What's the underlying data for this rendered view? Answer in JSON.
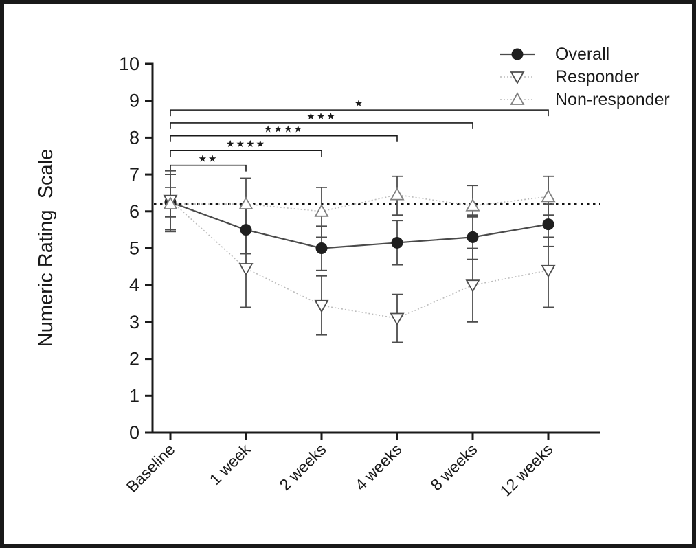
{
  "chart_data": {
    "type": "line",
    "title": "",
    "xlabel": "",
    "ylabel": "Numeric Rating  Scale",
    "ylim": [
      0,
      10
    ],
    "yticks": [
      0,
      1,
      2,
      3,
      4,
      5,
      6,
      7,
      8,
      9,
      10
    ],
    "categories": [
      "Baseline",
      "1 week",
      "2 weeks",
      "4 weeks",
      "8 weeks",
      "12 weeks"
    ],
    "grid": false,
    "reference_line": {
      "y": 6.2,
      "style": "dotted"
    },
    "series": [
      {
        "name": "Overall",
        "marker": "filled-circle",
        "line_style": "solid",
        "values": [
          6.25,
          5.5,
          5.0,
          5.15,
          5.3,
          5.65
        ],
        "err_low": [
          5.5,
          4.85,
          4.4,
          4.55,
          4.7,
          5.05
        ],
        "err_high": [
          7.0,
          6.15,
          5.6,
          5.75,
          5.9,
          6.2
        ]
      },
      {
        "name": "Responder",
        "marker": "open-triangle-down",
        "line_style": "dotted",
        "values": [
          6.3,
          4.45,
          3.45,
          3.1,
          4.0,
          4.4
        ],
        "err_low": [
          5.45,
          3.4,
          2.65,
          2.45,
          3.0,
          3.4
        ],
        "err_high": [
          7.1,
          5.5,
          4.25,
          3.75,
          5.0,
          5.3
        ]
      },
      {
        "name": "Non-responder",
        "marker": "open-triangle-up",
        "line_style": "dotted",
        "values": [
          6.2,
          6.2,
          6.0,
          6.45,
          6.15,
          6.4
        ],
        "err_low": [
          5.85,
          5.5,
          5.3,
          5.9,
          5.85,
          5.9
        ],
        "err_high": [
          6.65,
          6.9,
          6.65,
          6.95,
          6.7,
          6.95
        ]
      }
    ],
    "significance_brackets": [
      {
        "from": 0,
        "to": 1,
        "label": "**",
        "y": 7.25
      },
      {
        "from": 0,
        "to": 2,
        "label": "****",
        "y": 7.65
      },
      {
        "from": 0,
        "to": 3,
        "label": "****",
        "y": 8.05
      },
      {
        "from": 0,
        "to": 4,
        "label": "***",
        "y": 8.4
      },
      {
        "from": 0,
        "to": 5,
        "label": "*",
        "y": 8.75
      }
    ],
    "legend": {
      "position": "top-right",
      "entries": [
        "Overall",
        "Responder",
        "Non-responder"
      ]
    },
    "colors": {
      "axis": "#1a1a1a",
      "overall_line": "#4a4a4a",
      "overall_marker": "#1f1f1f",
      "dotted_series_line": "#bbbbbb",
      "responder_marker_outline": "#4d4d4d",
      "nonresponder_marker_outline": "#808080",
      "error_bar": "#4d4d4d",
      "reference_line": "#141414",
      "background": "#ffffff"
    }
  }
}
